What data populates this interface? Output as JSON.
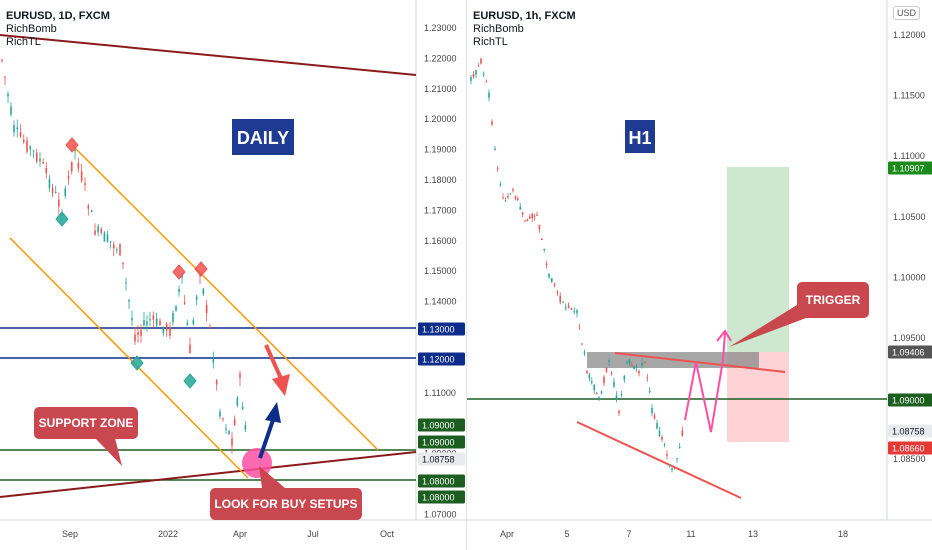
{
  "colors": {
    "up": "#26a69a",
    "down": "#ef5350",
    "navy": "#0d2d8a",
    "green_line": "#1b5e20",
    "orange": "#ff9800",
    "maroon": "#8b1a1a",
    "callout": "#c9474e",
    "pink": "#ff4fa3",
    "label_box": "#1f3a93"
  },
  "left_chart": {
    "header": {
      "symbol": "EURUSD, 1D, FXCM",
      "ind1": "RichBomb",
      "ind2": "RichTL"
    },
    "title_box": "DAILY",
    "support_label": "SUPPORT ZONE",
    "buy_label": "LOOK FOR BUY SETUPS",
    "y_ticks": [
      "1.23000",
      "1.22000",
      "1.21000",
      "1.20000",
      "1.19000",
      "1.18000",
      "1.17000",
      "1.16000",
      "1.15000",
      "1.14000",
      "1.13000",
      "1.12000",
      "1.11000",
      "1.10000",
      "1.09000",
      "1.08000",
      "1.07000"
    ],
    "x_ticks": [
      "Sep",
      "2022",
      "Apr",
      "Jul",
      "Oct"
    ],
    "price_tags": [
      {
        "text": "1.13000",
        "color": "#0d2d8a"
      },
      {
        "text": "1.12000",
        "color": "#0d2d8a"
      },
      {
        "text": "1.09000",
        "color": "#1b5e20"
      },
      {
        "text": "1.09000",
        "color": "#1b5e20"
      },
      {
        "text": "1.08758",
        "color": "#e9eaee"
      },
      {
        "text": "1.08000",
        "color": "#1b5e20"
      },
      {
        "text": "1.08000",
        "color": "#1b5e20"
      }
    ]
  },
  "right_chart": {
    "header": {
      "symbol": "EURUSD, 1h, FXCM",
      "ind1": "RichBomb",
      "ind2": "RichTL"
    },
    "title_box": "H1",
    "trigger_label": "TRIGGER",
    "currency_button": "USD",
    "y_ticks": [
      "1.12000",
      "1.11500",
      "1.11000",
      "1.10500",
      "1.10000",
      "1.09500",
      "1.09000",
      "1.08500"
    ],
    "x_ticks": [
      "Apr",
      "5",
      "7",
      "11",
      "13",
      "18"
    ],
    "price_tags": [
      {
        "text": "1.10907",
        "color": "#1b8a1b"
      },
      {
        "text": "1.09406",
        "color": "#555555"
      },
      {
        "text": "1.09000",
        "color": "#1b5e20"
      },
      {
        "text": "1.08758",
        "color": "#e9eaee"
      },
      {
        "text": "1.08660",
        "color": "#e53935"
      }
    ]
  }
}
